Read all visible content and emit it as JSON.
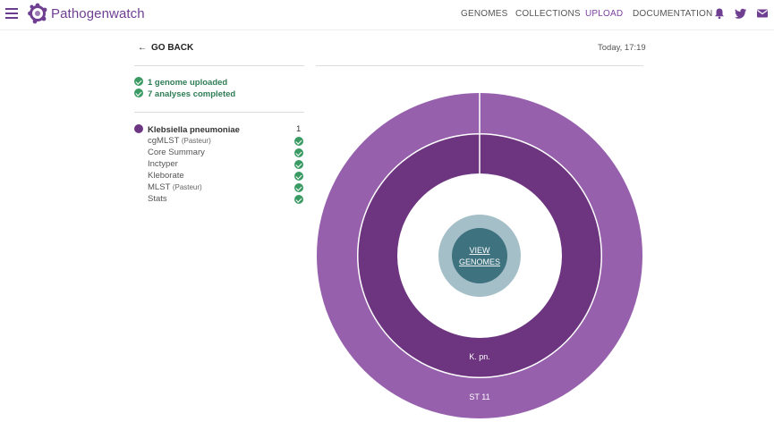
{
  "header": {
    "brand": "Pathogenwatch",
    "nav": [
      {
        "label": "GENOMES",
        "active": false
      },
      {
        "label": "COLLECTIONS",
        "active": false
      },
      {
        "label": "UPLOAD",
        "active": true
      },
      {
        "label": "DOCUMENTATION",
        "active": false
      }
    ],
    "icons": [
      "bell-icon",
      "twitter-icon",
      "mail-icon"
    ]
  },
  "back_label": "GO BACK",
  "timestamp": "Today, 17:19",
  "status": [
    {
      "text": "1 genome uploaded"
    },
    {
      "text": "7 analyses completed"
    }
  ],
  "organism": {
    "name": "Klebsiella pneumoniae",
    "count": "1"
  },
  "analyses": [
    {
      "name": "cgMLST",
      "variant": "(Pasteur)"
    },
    {
      "name": "Core Summary",
      "variant": ""
    },
    {
      "name": "Inctyper",
      "variant": ""
    },
    {
      "name": "Kleborate",
      "variant": ""
    },
    {
      "name": "MLST",
      "variant": "(Pasteur)"
    },
    {
      "name": "Stats",
      "variant": ""
    }
  ],
  "chart": {
    "center_label_1": "VIEW",
    "center_label_2": "GENOMES",
    "inner_ring_label": "K. pn.",
    "outer_ring_label": "ST 11",
    "colors": {
      "outer": "#9660ad",
      "inner": "#6d347f",
      "center_outer": "#a5bfc8",
      "center_inner": "#3e727f"
    }
  }
}
